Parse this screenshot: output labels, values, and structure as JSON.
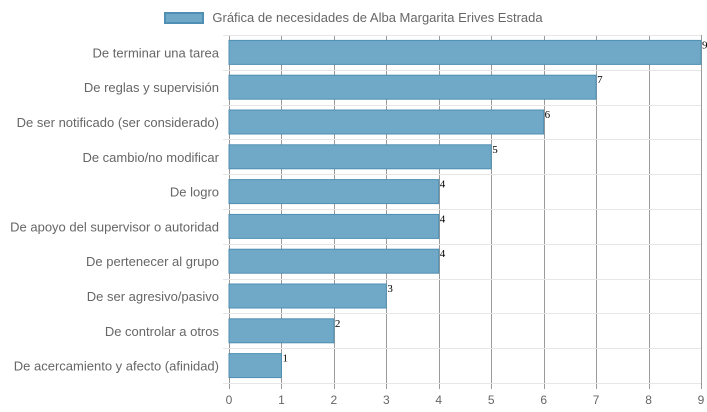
{
  "chart_data": {
    "type": "bar",
    "orientation": "horizontal",
    "categories": [
      "De terminar una tarea",
      "De reglas y supervisión",
      "De ser notificado (ser considerado)",
      "De cambio/no modificar",
      "De logro",
      "De apoyo del supervisor o autoridad",
      "De pertenecer al grupo",
      "De ser agresivo/pasivo",
      "De controlar a otros",
      "De acercamiento y afecto (afinidad)"
    ],
    "series": [
      {
        "name": "Gráfica de necesidades de Alba Margarita Erives Estrada",
        "values": [
          9,
          7,
          6,
          5,
          4,
          4,
          4,
          3,
          2,
          1
        ],
        "color": "#6fa9c7",
        "border_color": "#4f8fb3"
      }
    ],
    "x_ticks": [
      0,
      1,
      2,
      3,
      4,
      5,
      6,
      7,
      8,
      9
    ],
    "xlim": [
      0,
      9
    ],
    "grid": true,
    "legend_position": "top",
    "data_labels": true
  }
}
